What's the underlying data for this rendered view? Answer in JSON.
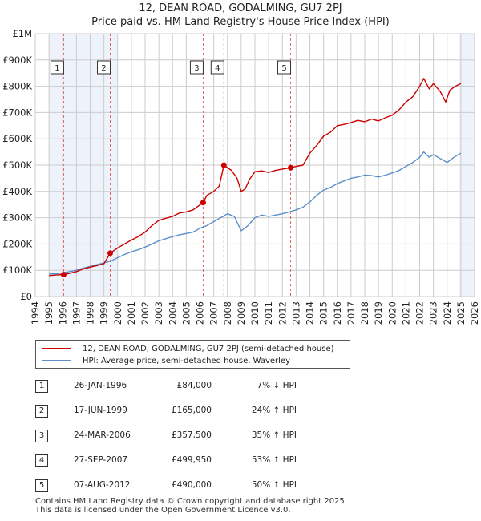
{
  "title_line1": "12, DEAN ROAD, GODALMING, GU7 2PJ",
  "title_line2": "Price paid vs. HM Land Registry's House Price Index (HPI)",
  "legend": {
    "series1": "12, DEAN ROAD, GODALMING, GU7 2PJ (semi-detached house)",
    "series2": "HPI: Average price, semi-detached house, Waverley"
  },
  "colors": {
    "red": "#cc0000",
    "blue": "#5b8fc9",
    "shade": "#eef2fb",
    "grid": "#cccccc",
    "marker_line": "#e06666"
  },
  "chart_data": {
    "type": "line",
    "xlim": [
      1994,
      2026
    ],
    "ylim": [
      0,
      1000000
    ],
    "y_ticks": [
      0,
      100000,
      200000,
      300000,
      400000,
      500000,
      600000,
      700000,
      800000,
      900000,
      1000000
    ],
    "y_tick_labels": [
      "£0",
      "£100K",
      "£200K",
      "£300K",
      "£400K",
      "£500K",
      "£600K",
      "£700K",
      "£800K",
      "£900K",
      "£1M"
    ],
    "x_ticks": [
      "1994",
      "1995",
      "1996",
      "1997",
      "1998",
      "1999",
      "2000",
      "2001",
      "2002",
      "2003",
      "2004",
      "2005",
      "2006",
      "2007",
      "2008",
      "2009",
      "2010",
      "2011",
      "2012",
      "2013",
      "2014",
      "2015",
      "2016",
      "2017",
      "2018",
      "2019",
      "2020",
      "2021",
      "2022",
      "2023",
      "2024",
      "2025",
      "2026"
    ],
    "shaded_ranges": [
      [
        1995.0,
        2000.0
      ],
      [
        2024.9,
        2026.0
      ]
    ],
    "series": [
      {
        "name": "12, DEAN ROAD, GODALMING, GU7 2PJ (semi-detached house)",
        "color": "#cc0000",
        "points": [
          [
            1995.0,
            80000
          ],
          [
            1995.5,
            82000
          ],
          [
            1996.07,
            84000
          ],
          [
            1996.5,
            88000
          ],
          [
            1997.0,
            95000
          ],
          [
            1997.5,
            105000
          ],
          [
            1998.0,
            112000
          ],
          [
            1998.5,
            118000
          ],
          [
            1999.0,
            125000
          ],
          [
            1999.46,
            165000
          ],
          [
            2000.0,
            185000
          ],
          [
            2000.5,
            200000
          ],
          [
            2001.0,
            215000
          ],
          [
            2001.5,
            228000
          ],
          [
            2002.0,
            245000
          ],
          [
            2002.5,
            270000
          ],
          [
            2003.0,
            290000
          ],
          [
            2003.5,
            298000
          ],
          [
            2004.0,
            305000
          ],
          [
            2004.5,
            318000
          ],
          [
            2005.0,
            322000
          ],
          [
            2005.5,
            330000
          ],
          [
            2006.23,
            357500
          ],
          [
            2006.5,
            385000
          ],
          [
            2007.0,
            400000
          ],
          [
            2007.4,
            420000
          ],
          [
            2007.74,
            499950
          ],
          [
            2008.0,
            490000
          ],
          [
            2008.3,
            480000
          ],
          [
            2008.7,
            450000
          ],
          [
            2009.0,
            400000
          ],
          [
            2009.3,
            410000
          ],
          [
            2009.6,
            445000
          ],
          [
            2010.0,
            475000
          ],
          [
            2010.5,
            478000
          ],
          [
            2011.0,
            472000
          ],
          [
            2011.5,
            480000
          ],
          [
            2012.0,
            485000
          ],
          [
            2012.6,
            490000
          ],
          [
            2013.0,
            495000
          ],
          [
            2013.5,
            500000
          ],
          [
            2014.0,
            545000
          ],
          [
            2014.5,
            575000
          ],
          [
            2015.0,
            610000
          ],
          [
            2015.5,
            625000
          ],
          [
            2016.0,
            650000
          ],
          [
            2016.5,
            655000
          ],
          [
            2017.0,
            662000
          ],
          [
            2017.5,
            670000
          ],
          [
            2018.0,
            665000
          ],
          [
            2018.5,
            675000
          ],
          [
            2019.0,
            668000
          ],
          [
            2019.5,
            680000
          ],
          [
            2020.0,
            690000
          ],
          [
            2020.5,
            710000
          ],
          [
            2021.0,
            740000
          ],
          [
            2021.5,
            760000
          ],
          [
            2022.0,
            800000
          ],
          [
            2022.3,
            830000
          ],
          [
            2022.7,
            790000
          ],
          [
            2023.0,
            810000
          ],
          [
            2023.5,
            780000
          ],
          [
            2023.9,
            740000
          ],
          [
            2024.2,
            785000
          ],
          [
            2024.6,
            800000
          ],
          [
            2025.0,
            810000
          ]
        ]
      },
      {
        "name": "HPI: Average price, semi-detached house, Waverley",
        "color": "#5b8fc9",
        "points": [
          [
            1995.0,
            86000
          ],
          [
            1995.5,
            87000
          ],
          [
            1996.0,
            90000
          ],
          [
            1996.5,
            95000
          ],
          [
            1997.0,
            100000
          ],
          [
            1997.5,
            108000
          ],
          [
            1998.0,
            115000
          ],
          [
            1999.0,
            128000
          ],
          [
            1999.5,
            135000
          ],
          [
            2000.0,
            148000
          ],
          [
            2000.5,
            160000
          ],
          [
            2001.0,
            170000
          ],
          [
            2001.5,
            178000
          ],
          [
            2002.0,
            188000
          ],
          [
            2002.5,
            200000
          ],
          [
            2003.0,
            212000
          ],
          [
            2003.5,
            220000
          ],
          [
            2004.0,
            228000
          ],
          [
            2004.5,
            235000
          ],
          [
            2005.0,
            240000
          ],
          [
            2005.5,
            245000
          ],
          [
            2006.0,
            260000
          ],
          [
            2006.5,
            270000
          ],
          [
            2007.0,
            285000
          ],
          [
            2007.5,
            300000
          ],
          [
            2008.0,
            315000
          ],
          [
            2008.5,
            305000
          ],
          [
            2009.0,
            250000
          ],
          [
            2009.5,
            270000
          ],
          [
            2010.0,
            300000
          ],
          [
            2010.5,
            310000
          ],
          [
            2011.0,
            305000
          ],
          [
            2011.5,
            310000
          ],
          [
            2012.0,
            315000
          ],
          [
            2012.5,
            322000
          ],
          [
            2013.0,
            330000
          ],
          [
            2013.5,
            340000
          ],
          [
            2014.0,
            360000
          ],
          [
            2014.5,
            385000
          ],
          [
            2015.0,
            405000
          ],
          [
            2015.5,
            415000
          ],
          [
            2016.0,
            430000
          ],
          [
            2016.5,
            440000
          ],
          [
            2017.0,
            450000
          ],
          [
            2017.5,
            455000
          ],
          [
            2018.0,
            462000
          ],
          [
            2018.5,
            460000
          ],
          [
            2019.0,
            455000
          ],
          [
            2019.5,
            462000
          ],
          [
            2020.0,
            470000
          ],
          [
            2020.5,
            480000
          ],
          [
            2021.0,
            495000
          ],
          [
            2021.5,
            510000
          ],
          [
            2022.0,
            530000
          ],
          [
            2022.3,
            550000
          ],
          [
            2022.7,
            530000
          ],
          [
            2023.0,
            540000
          ],
          [
            2023.5,
            525000
          ],
          [
            2024.0,
            510000
          ],
          [
            2024.5,
            530000
          ],
          [
            2025.0,
            545000
          ]
        ]
      }
    ],
    "sales": [
      {
        "id": "1",
        "x": 1996.07,
        "y": 84000
      },
      {
        "id": "2",
        "x": 1999.46,
        "y": 165000
      },
      {
        "id": "3",
        "x": 2006.23,
        "y": 357500
      },
      {
        "id": "4",
        "x": 2007.74,
        "y": 499950
      },
      {
        "id": "5",
        "x": 2012.6,
        "y": 490000
      }
    ]
  },
  "transactions": [
    {
      "num": "1",
      "date": "26-JAN-1996",
      "price": "£84,000",
      "hpi": "7% ↓ HPI"
    },
    {
      "num": "2",
      "date": "17-JUN-1999",
      "price": "£165,000",
      "hpi": "24% ↑ HPI"
    },
    {
      "num": "3",
      "date": "24-MAR-2006",
      "price": "£357,500",
      "hpi": "35% ↑ HPI"
    },
    {
      "num": "4",
      "date": "27-SEP-2007",
      "price": "£499,950",
      "hpi": "53% ↑ HPI"
    },
    {
      "num": "5",
      "date": "07-AUG-2012",
      "price": "£490,000",
      "hpi": "50% ↑ HPI"
    }
  ],
  "footer_line1": "Contains HM Land Registry data © Crown copyright and database right 2025.",
  "footer_line2": "This data is licensed under the Open Government Licence v3.0."
}
